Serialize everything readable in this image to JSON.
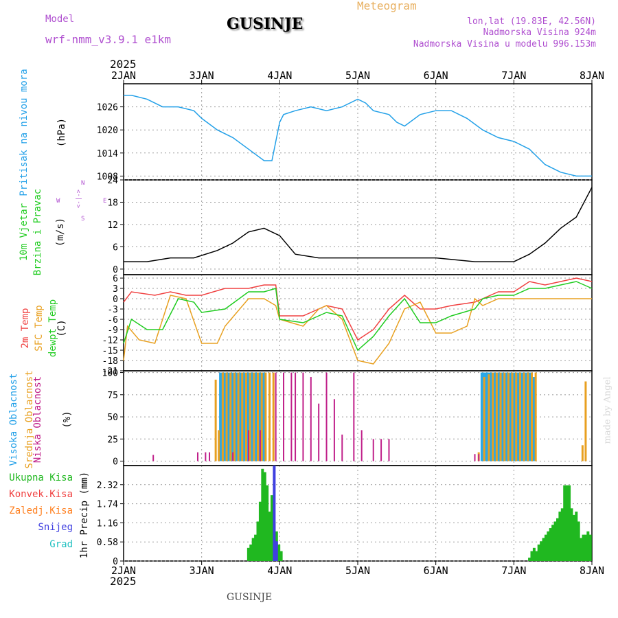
{
  "header": {
    "model_label": "Model",
    "model_name": "wrf-nmm_v3.9.1 e1km",
    "station": "GUSINJE",
    "meteogram": "Meteogram",
    "lonlat": "lon,lat (19.83E, 42.56N)",
    "elevation": "Nadmorska Visina 924m",
    "model_elevation": "Nadmorska Visina u modelu 996.153m",
    "year_top": "2025",
    "year_bottom": "2025",
    "footer_station": "GUSINJE",
    "credit": "made by Angel"
  },
  "colors": {
    "pressure": "#22a0e8",
    "temp2m": "#f04040",
    "sfc": "#e8a020",
    "dewpt": "#20cc20",
    "high": "#2aa8e8",
    "mid": "#e8a020",
    "low": "#c0208a",
    "total": "#20b820",
    "convective": "#f04040",
    "freezing": "#ff8020",
    "snow": "#4040e0",
    "hail": "#20c0c0",
    "title_purple": "#b050d0",
    "meteogram_orange": "#e8b060"
  },
  "x_axis": {
    "day_labels": [
      "2JAN",
      "3JAN",
      "4JAN",
      "5JAN",
      "6JAN",
      "7JAN",
      "8JAN"
    ]
  },
  "panel_labels": {
    "pressure": {
      "name": "Pritisak na nivou mora",
      "unit": "(hPa)"
    },
    "wind": {
      "name1": "10m Vjetar",
      "name2": "Brzina i Pravac",
      "unit": "(m/s)",
      "compass_n": "N",
      "compass_s": "S",
      "compass_w": "W",
      "compass_e": "E",
      "compass_arrows": "<-|->"
    },
    "temp": {
      "name1": "2m Temp",
      "name2": "SFC Temp",
      "name3": "dewpt Temp",
      "unit": "(C)"
    },
    "cloud": {
      "name1": "Visoka Oblacnost",
      "name2": "Srednja Oblacnost",
      "name3": "Niska Oblacnost",
      "unit": "(%)"
    },
    "precip": {
      "legend": [
        "Ukupna Kisa",
        "Konvek.Kisa",
        "Zaledj.Kisa",
        "Snijeg",
        "Grad"
      ],
      "unit": "1hr Precip (mm)"
    }
  },
  "chart_data": [
    {
      "type": "line",
      "id": "pressure",
      "ylabel": "(hPa)",
      "ylim": [
        1007,
        1032
      ],
      "yticks": [
        "1026",
        "1020",
        "1014",
        "1008"
      ],
      "series": [
        {
          "x": [
            0,
            0.1,
            0.3,
            0.5,
            0.7,
            0.9,
            1.0,
            1.2,
            1.4,
            1.6,
            1.8,
            1.9,
            2.0,
            2.05,
            2.2,
            2.4,
            2.6,
            2.8,
            3.0,
            3.1,
            3.2,
            3.4,
            3.5,
            3.6,
            3.8,
            4.0,
            4.2,
            4.4,
            4.6,
            4.8,
            5.0,
            5.2,
            5.4,
            5.6,
            5.8,
            6.0
          ],
          "values": [
            1029,
            1029,
            1028,
            1026,
            1026,
            1025,
            1023,
            1020,
            1018,
            1015,
            1012,
            1012,
            1022,
            1024,
            1025,
            1026,
            1025,
            1026,
            1028,
            1027,
            1025,
            1024,
            1022,
            1021,
            1024,
            1025,
            1025,
            1023,
            1020,
            1018,
            1017,
            1015,
            1011,
            1009,
            1008,
            1008
          ]
        }
      ]
    },
    {
      "type": "line",
      "id": "wind",
      "ylabel": "(m/s)",
      "ylim": [
        -1.5,
        24
      ],
      "yticks": [
        "24",
        "18",
        "12",
        "6",
        "0"
      ],
      "series": [
        {
          "name": "Brzina i Pravac",
          "x": [
            0,
            0.3,
            0.6,
            0.9,
            1.2,
            1.4,
            1.6,
            1.8,
            2.0,
            2.2,
            2.5,
            3.0,
            3.5,
            4.0,
            4.5,
            5.0,
            5.2,
            5.4,
            5.6,
            5.8,
            6.0
          ],
          "values": [
            2,
            2,
            3,
            3,
            5,
            7,
            10,
            11,
            9,
            4,
            3,
            3,
            3,
            3,
            2,
            2,
            4,
            7,
            11,
            14,
            22
          ]
        }
      ]
    },
    {
      "type": "line",
      "id": "temperature",
      "ylabel": "(C)",
      "ylim": [
        -21,
        7
      ],
      "yticks": [
        "6",
        "3",
        "0",
        "-3",
        "-6",
        "-9",
        "-12",
        "-15",
        "-18",
        "-21"
      ],
      "series": [
        {
          "name": "2m Temp",
          "x": [
            0,
            0.1,
            0.4,
            0.6,
            0.8,
            1.0,
            1.3,
            1.6,
            1.8,
            1.95,
            2.0,
            2.3,
            2.6,
            2.8,
            3.0,
            3.2,
            3.4,
            3.6,
            3.8,
            4.0,
            4.2,
            4.5,
            4.7,
            4.8,
            5.0,
            5.2,
            5.4,
            5.6,
            5.8,
            6.0
          ],
          "values": [
            -1,
            2,
            1,
            2,
            1,
            1,
            3,
            3,
            4,
            4,
            -5,
            -5,
            -2,
            -3,
            -12,
            -9,
            -3,
            1,
            -3,
            -3,
            -2,
            -1,
            1,
            2,
            2,
            5,
            4,
            5,
            6,
            5
          ]
        },
        {
          "name": "SFC Temp",
          "x": [
            0,
            0.05,
            0.2,
            0.4,
            0.6,
            0.8,
            1.0,
            1.2,
            1.3,
            1.6,
            1.8,
            1.95,
            2.0,
            2.3,
            2.5,
            2.6,
            2.8,
            3.0,
            3.2,
            3.4,
            3.6,
            3.8,
            4.0,
            4.2,
            4.4,
            4.5,
            4.6,
            4.8,
            5.0,
            5.2,
            5.4,
            5.6,
            5.8,
            6.0
          ],
          "values": [
            -18,
            -8,
            -12,
            -13,
            1,
            0,
            -13,
            -13,
            -8,
            0,
            0,
            -2,
            -6,
            -8,
            -3,
            -2,
            -6,
            -18,
            -19,
            -13,
            -3,
            -1,
            -10,
            -10,
            -8,
            0,
            -2,
            0,
            0,
            0,
            0,
            0,
            0,
            0
          ]
        },
        {
          "name": "dewpt Temp",
          "x": [
            0,
            0.1,
            0.3,
            0.5,
            0.7,
            0.9,
            1.0,
            1.3,
            1.6,
            1.8,
            1.95,
            2.0,
            2.3,
            2.6,
            2.8,
            3.0,
            3.2,
            3.4,
            3.6,
            3.8,
            4.0,
            4.2,
            4.5,
            4.6,
            4.8,
            5.0,
            5.2,
            5.4,
            5.6,
            5.8,
            6.0
          ],
          "values": [
            -13,
            -6,
            -9,
            -9,
            0,
            -1,
            -4,
            -3,
            2,
            2,
            3,
            -6,
            -7,
            -4,
            -5,
            -15,
            -11,
            -5,
            0,
            -7,
            -7,
            -5,
            -3,
            0,
            1,
            1,
            3,
            3,
            4,
            5,
            3
          ]
        }
      ]
    },
    {
      "type": "bar",
      "id": "cloud",
      "ylabel": "(%)",
      "ylim": [
        -5,
        102
      ],
      "yticks": [
        "100",
        "75",
        "50",
        "25",
        "0"
      ],
      "series": [
        {
          "name": "Visoka Oblacnost",
          "x": [
            1.25,
            1.3,
            1.35,
            1.4,
            1.45,
            1.5,
            1.55,
            1.6,
            1.65,
            1.7,
            1.75,
            1.8,
            4.6,
            4.65,
            4.7,
            4.75,
            4.8,
            4.85,
            4.9,
            4.95,
            5.0,
            5.05,
            5.1,
            5.15,
            5.2,
            5.25
          ],
          "values": [
            100,
            100,
            100,
            100,
            100,
            100,
            100,
            100,
            100,
            100,
            100,
            100,
            100,
            100,
            100,
            100,
            100,
            100,
            100,
            100,
            100,
            100,
            100,
            100,
            100,
            95
          ]
        },
        {
          "name": "Srednja Oblacnost",
          "x": [
            1.18,
            1.22,
            1.27,
            1.32,
            1.37,
            1.42,
            1.47,
            1.52,
            1.57,
            1.62,
            1.67,
            1.72,
            1.77,
            1.82,
            1.87,
            1.92,
            4.55,
            4.62,
            4.68,
            4.73,
            4.78,
            4.83,
            4.88,
            4.93,
            4.98,
            5.03,
            5.08,
            5.13,
            5.18,
            5.23,
            5.28,
            5.88,
            5.92
          ],
          "values": [
            92,
            35,
            100,
            100,
            100,
            100,
            100,
            100,
            100,
            100,
            100,
            100,
            100,
            100,
            100,
            100,
            10,
            95,
            98,
            100,
            100,
            100,
            100,
            100,
            100,
            100,
            100,
            100,
            100,
            100,
            100,
            18,
            90
          ]
        },
        {
          "name": "Niska Oblacnost",
          "x": [
            0.38,
            0.95,
            1.05,
            1.1,
            1.4,
            1.6,
            1.75,
            1.95,
            2.05,
            2.15,
            2.2,
            2.3,
            2.4,
            2.5,
            2.6,
            2.7,
            2.8,
            2.95,
            3.05,
            3.2,
            3.3,
            3.4,
            4.5,
            4.55
          ],
          "values": [
            7,
            10,
            10,
            10,
            10,
            35,
            35,
            100,
            100,
            100,
            100,
            100,
            95,
            65,
            100,
            70,
            30,
            100,
            35,
            25,
            25,
            25,
            8,
            8
          ]
        }
      ]
    },
    {
      "type": "bar",
      "id": "precipitation",
      "ylabel": "1hr Precip (mm)",
      "ylim": [
        0,
        2.9
      ],
      "yticks": [
        "2.32",
        "1.74",
        "1.16",
        "0.58",
        "0"
      ],
      "series": [
        {
          "name": "Ukupna Kisa",
          "x": [
            1.6,
            1.63,
            1.66,
            1.69,
            1.72,
            1.75,
            1.78,
            1.81,
            1.84,
            1.87,
            1.9,
            1.93,
            1.96,
            1.99,
            2.02,
            5.2,
            5.23,
            5.26,
            5.29,
            5.32,
            5.35,
            5.38,
            5.41,
            5.44,
            5.47,
            5.5,
            5.53,
            5.56,
            5.59,
            5.62,
            5.65,
            5.68,
            5.71,
            5.74,
            5.77,
            5.8,
            5.83,
            5.86,
            5.89,
            5.92,
            5.95,
            5.98
          ],
          "values": [
            0.4,
            0.5,
            0.7,
            0.8,
            1.2,
            1.8,
            2.8,
            2.7,
            2.3,
            1.5,
            2.0,
            1.2,
            0.9,
            0.5,
            0.3,
            0.1,
            0.3,
            0.4,
            0.3,
            0.5,
            0.6,
            0.7,
            0.8,
            0.9,
            1.0,
            1.1,
            1.2,
            1.3,
            1.5,
            1.6,
            2.3,
            2.3,
            2.3,
            1.6,
            1.4,
            1.5,
            1.2,
            0.7,
            0.8,
            0.8,
            0.9,
            0.8
          ]
        },
        {
          "name": "Snijeg",
          "x": [
            1.93,
            1.96
          ],
          "values": [
            2.9,
            0.6
          ]
        }
      ]
    }
  ]
}
